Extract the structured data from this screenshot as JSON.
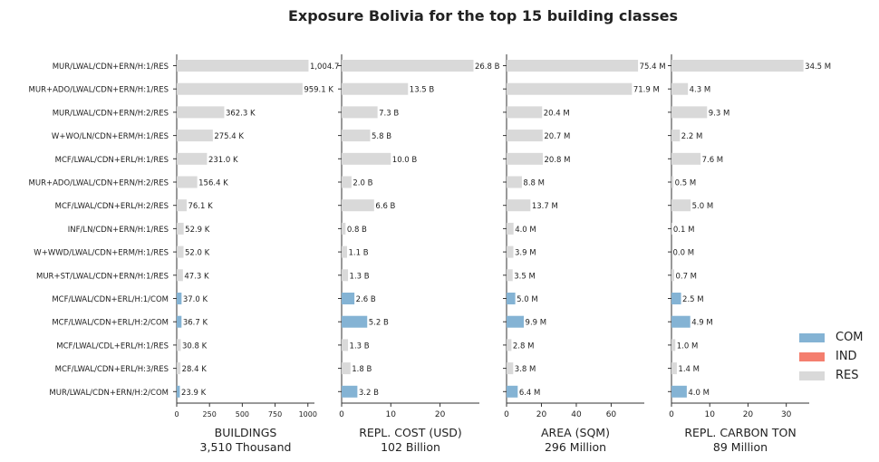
{
  "title": "Exposure Bolivia for the top 15 building classes",
  "colors": {
    "COM": "#84b3d4",
    "IND": "#f47e6e",
    "RES": "#d9d9d9"
  },
  "legend": [
    {
      "label": "COM",
      "color": "#84b3d4"
    },
    {
      "label": "IND",
      "color": "#f47e6e"
    },
    {
      "label": "RES",
      "color": "#d9d9d9"
    }
  ],
  "chart_data": {
    "type": "bar",
    "orientation": "horizontal",
    "categories": [
      "MUR/LWAL/CDN+ERN/H:1/RES",
      "MUR+ADO/LWAL/CDN+ERN/H:1/RES",
      "MUR/LWAL/CDN+ERN/H:2/RES",
      "W+WO/LN/CDN+ERM/H:1/RES",
      "MCF/LWAL/CDN+ERL/H:1/RES",
      "MUR+ADO/LWAL/CDN+ERN/H:2/RES",
      "MCF/LWAL/CDN+ERL/H:2/RES",
      "INF/LN/CDN+ERN/H:1/RES",
      "W+WWD/LWAL/CDN+ERM/H:1/RES",
      "MUR+ST/LWAL/CDN+ERN/H:1/RES",
      "MCF/LWAL/CDN+ERL/H:1/COM",
      "MCF/LWAL/CDN+ERL/H:2/COM",
      "MCF/LWAL/CDL+ERL/H:1/RES",
      "MCF/LWAL/CDN+ERL/H:3/RES",
      "MUR/LWAL/CDN+ERN/H:2/COM"
    ],
    "occupancy": [
      "RES",
      "RES",
      "RES",
      "RES",
      "RES",
      "RES",
      "RES",
      "RES",
      "RES",
      "RES",
      "COM",
      "COM",
      "RES",
      "RES",
      "COM"
    ],
    "panels": [
      {
        "xlabel": "BUILDINGS",
        "total": "3,510 Thousand",
        "xlim": [
          0,
          1050
        ],
        "ticks": [
          0,
          250,
          500,
          750,
          1000
        ],
        "tick_labels": [
          "0",
          "250",
          "500",
          "750",
          "1000"
        ],
        "tick_font": 8,
        "values": [
          1004.7,
          959.1,
          362.3,
          275.4,
          231.0,
          156.4,
          76.1,
          52.9,
          52.0,
          47.3,
          37.0,
          36.7,
          30.8,
          28.4,
          23.9
        ],
        "labels": [
          "1,004.7",
          "959.1 K",
          "362.3 K",
          "275.4 K",
          "231.0 K",
          "156.4 K",
          "76.1 K",
          "52.9 K",
          "52.0 K",
          "47.3 K",
          "37.0 K",
          "36.7 K",
          "30.8 K",
          "28.4 K",
          "23.9 K"
        ]
      },
      {
        "xlabel": "REPL. COST (USD)",
        "total": "102 Billion",
        "xlim": [
          0,
          28
        ],
        "ticks": [
          0,
          10,
          20
        ],
        "tick_labels": [
          "0",
          "10",
          "20"
        ],
        "tick_font": 9,
        "values": [
          26.8,
          13.5,
          7.3,
          5.8,
          10.0,
          2.0,
          6.6,
          0.8,
          1.1,
          1.3,
          2.6,
          5.2,
          1.3,
          1.8,
          3.2
        ],
        "labels": [
          "26.8 B",
          "13.5 B",
          "7.3 B",
          "5.8 B",
          "10.0 B",
          "2.0 B",
          "6.6 B",
          "0.8 B",
          "1.1 B",
          "1.3 B",
          "2.6 B",
          "5.2 B",
          "1.3 B",
          "1.8 B",
          "3.2 B"
        ]
      },
      {
        "xlabel": "AREA (SQM)",
        "total": "296 Million",
        "xlim": [
          0,
          79
        ],
        "ticks": [
          0,
          20,
          40,
          60
        ],
        "tick_labels": [
          "0",
          "20",
          "40",
          "60"
        ],
        "tick_font": 9,
        "values": [
          75.4,
          71.9,
          20.4,
          20.7,
          20.8,
          8.8,
          13.7,
          4.0,
          3.9,
          3.5,
          5.0,
          9.9,
          2.8,
          3.8,
          6.4
        ],
        "labels": [
          "75.4 M",
          "71.9 M",
          "20.4 M",
          "20.7 M",
          "20.8 M",
          "8.8 M",
          "13.7 M",
          "4.0 M",
          "3.9 M",
          "3.5 M",
          "5.0 M",
          "9.9 M",
          "2.8 M",
          "3.8 M",
          "6.4 M"
        ]
      },
      {
        "xlabel": "REPL. CARBON TON",
        "total": "89 Million",
        "xlim": [
          0,
          36
        ],
        "ticks": [
          0,
          10,
          20,
          30
        ],
        "tick_labels": [
          "0",
          "10",
          "20",
          "30"
        ],
        "tick_font": 9,
        "values": [
          34.5,
          4.3,
          9.3,
          2.2,
          7.6,
          0.5,
          5.0,
          0.1,
          0.0,
          0.7,
          2.5,
          4.9,
          1.0,
          1.4,
          4.0
        ],
        "labels": [
          "34.5 M",
          "4.3 M",
          "9.3 M",
          "2.2 M",
          "7.6 M",
          "0.5 M",
          "5.0 M",
          "0.1 M",
          "0.0 M",
          "0.7 M",
          "2.5 M",
          "4.9 M",
          "1.0 M",
          "1.4 M",
          "4.0 M"
        ]
      }
    ]
  }
}
